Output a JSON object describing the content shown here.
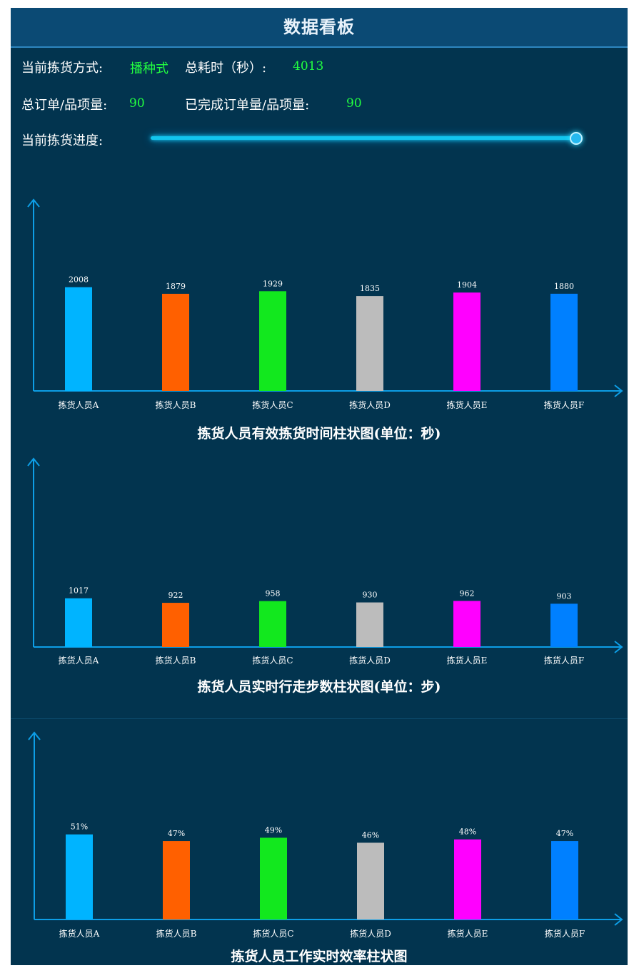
{
  "header": {
    "title": "数据看板"
  },
  "stats": {
    "pick_mode_label": "当前拣货方式:",
    "pick_mode_value": "播种式",
    "total_time_label": "总耗时（秒）:",
    "total_time_value": "4013",
    "total_orders_label": "总订单/品项量:",
    "total_orders_value": "90",
    "completed_orders_label": "已完成订单量/品项量:",
    "completed_orders_value": "90",
    "progress_label": "当前拣货进度:",
    "progress_fraction": 1.0
  },
  "colors": [
    "#00b4ff",
    "#ff6000",
    "#12e81e",
    "#bcbcbc",
    "#ff00ff",
    "#0080ff"
  ],
  "chart_data": [
    {
      "type": "bar",
      "title": "拣货人员有效拣货时间柱状图(单位：秒)",
      "categories": [
        "拣货人员A",
        "拣货人员B",
        "拣货人员C",
        "拣货人员D",
        "拣货人员E",
        "拣货人员F"
      ],
      "values": [
        2008,
        1879,
        1929,
        1835,
        1904,
        1880
      ],
      "labels": [
        "2008",
        "1879",
        "1929",
        "1835",
        "1904",
        "1880"
      ],
      "ylim": [
        0,
        3700
      ],
      "grid": false
    },
    {
      "type": "bar",
      "title": "拣货人员实时行走步数柱状图(单位：步)",
      "categories": [
        "拣货人员A",
        "拣货人员B",
        "拣货人员C",
        "拣货人员D",
        "拣货人员E",
        "拣货人员F"
      ],
      "values": [
        1017,
        922,
        958,
        930,
        962,
        903
      ],
      "labels": [
        "1017",
        "922",
        "958",
        "930",
        "962",
        "903"
      ],
      "ylim": [
        0,
        3930
      ],
      "grid": false
    },
    {
      "type": "bar",
      "title": "拣货人员工作实时效率柱状图",
      "categories": [
        "拣货人员A",
        "拣货人员B",
        "拣货人员C",
        "拣货人员D",
        "拣货人员E",
        "拣货人员F"
      ],
      "values": [
        51,
        47,
        49,
        46,
        48,
        47
      ],
      "labels": [
        "51%",
        "47%",
        "49%",
        "46%",
        "48%",
        "47%"
      ],
      "ylim": [
        0,
        112
      ],
      "grid": false
    }
  ]
}
